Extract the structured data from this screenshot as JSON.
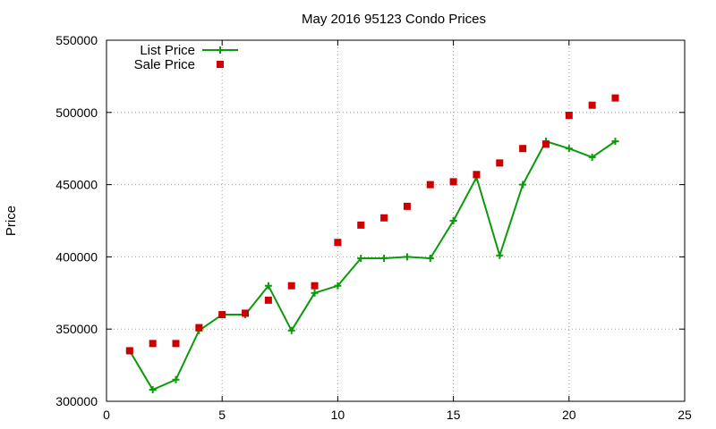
{
  "chart_data": {
    "type": "line",
    "title": "May 2016 95123 Condo Prices",
    "xlabel": "",
    "ylabel": "Price",
    "xlim": [
      0,
      25
    ],
    "ylim": [
      300000,
      550000
    ],
    "xticks": [
      "0",
      "5",
      "10",
      "15",
      "20",
      "25"
    ],
    "yticks": [
      "300000",
      "350000",
      "400000",
      "450000",
      "500000",
      "550000"
    ],
    "grid": true,
    "legend_position": "top-left",
    "series": [
      {
        "name": "List Price",
        "style": "line-plus",
        "color": "#0a9a0a",
        "x": [
          1,
          2,
          3,
          4,
          5,
          6,
          7,
          8,
          9,
          10,
          11,
          12,
          13,
          14,
          15,
          16,
          17,
          18,
          19,
          20,
          21,
          22
        ],
        "y": [
          335000,
          308000,
          315000,
          349000,
          360000,
          360000,
          380000,
          349000,
          375000,
          380000,
          399000,
          399000,
          400000,
          399000,
          425000,
          455000,
          401000,
          450000,
          480000,
          475000,
          469000,
          480000
        ]
      },
      {
        "name": "Sale Price",
        "style": "square-points",
        "color": "#cc0000",
        "x": [
          1,
          2,
          3,
          4,
          5,
          6,
          7,
          8,
          9,
          10,
          11,
          12,
          13,
          14,
          15,
          16,
          17,
          18,
          19,
          20,
          21,
          22
        ],
        "y": [
          335000,
          340000,
          340000,
          351000,
          360000,
          361000,
          370000,
          380000,
          380000,
          410000,
          422000,
          427000,
          435000,
          450000,
          452000,
          457000,
          465000,
          475000,
          478000,
          498000,
          505000,
          510000
        ]
      }
    ]
  }
}
